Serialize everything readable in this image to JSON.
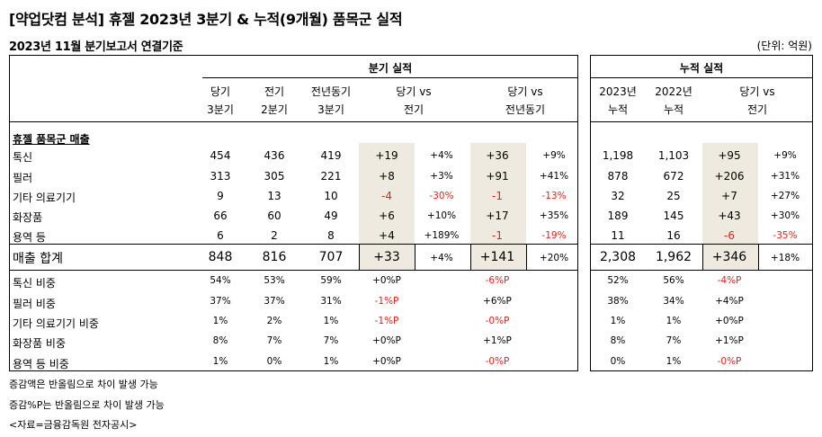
{
  "title": "[약업닷컴 분석] 휴젤 2023년 3분기 & 누적(9개월) 품목군 실적",
  "subtitle": "2023년 11월 분기보고서 연결기준",
  "unit": "(단위: 억원)",
  "groups": {
    "quarter": "분기 실적",
    "cumulative": "누적 실적"
  },
  "headers": {
    "q_cur": [
      "당기",
      "3분기"
    ],
    "q_prev": [
      "전기",
      "2분기"
    ],
    "q_yoy": [
      "전년동기",
      "3분기"
    ],
    "q_vs_prev": [
      "당기 vs",
      "전기"
    ],
    "q_vs_yoy": [
      "당기 vs",
      "전년동기"
    ],
    "c_2023": [
      "2023년",
      "누적"
    ],
    "c_2022": [
      "2022년",
      "누적"
    ],
    "c_vs": [
      "당기 vs",
      "전기"
    ]
  },
  "section_label": "휴젤 품목군 매출",
  "rows": [
    {
      "label": "톡신",
      "cur": "454",
      "prev": "436",
      "yoy": "419",
      "d1": "+19",
      "p1": "+4%",
      "d2": "+36",
      "p2": "+9%",
      "c23": "1,198",
      "c22": "1,103",
      "d3": "+95",
      "p3": "+9%"
    },
    {
      "label": "필러",
      "cur": "313",
      "prev": "305",
      "yoy": "221",
      "d1": "+8",
      "p1": "+3%",
      "d2": "+91",
      "p2": "+41%",
      "c23": "878",
      "c22": "672",
      "d3": "+206",
      "p3": "+31%"
    },
    {
      "label": "기타 의료기기",
      "cur": "9",
      "prev": "13",
      "yoy": "10",
      "d1": "-4",
      "p1": "-30%",
      "d2": "-1",
      "p2": "-13%",
      "c23": "32",
      "c22": "25",
      "d3": "+7",
      "p3": "+27%"
    },
    {
      "label": "화장품",
      "cur": "66",
      "prev": "60",
      "yoy": "49",
      "d1": "+6",
      "p1": "+10%",
      "d2": "+17",
      "p2": "+35%",
      "c23": "189",
      "c22": "145",
      "d3": "+43",
      "p3": "+30%"
    },
    {
      "label": "용역 등",
      "cur": "6",
      "prev": "2",
      "yoy": "8",
      "d1": "+4",
      "p1": "+189%",
      "d2": "-1",
      "p2": "-19%",
      "c23": "11",
      "c22": "16",
      "d3": "-6",
      "p3": "-35%"
    }
  ],
  "total": {
    "label": "매출 합계",
    "cur": "848",
    "prev": "816",
    "yoy": "707",
    "d1": "+33",
    "p1": "+4%",
    "d2": "+141",
    "p2": "+20%",
    "c23": "2,308",
    "c22": "1,962",
    "d3": "+346",
    "p3": "+18%"
  },
  "ratios": [
    {
      "label": "톡신 비중",
      "cur": "54%",
      "prev": "53%",
      "yoy": "59%",
      "v1": "+0%P",
      "v2": "-6%P",
      "c23": "52%",
      "c22": "56%",
      "v3": "-4%P"
    },
    {
      "label": "필러 비중",
      "cur": "37%",
      "prev": "37%",
      "yoy": "31%",
      "v1": "-1%P",
      "v2": "+6%P",
      "c23": "38%",
      "c22": "34%",
      "v3": "+4%P"
    },
    {
      "label": "기타 의료기기 비중",
      "cur": "1%",
      "prev": "2%",
      "yoy": "1%",
      "v1": "-1%P",
      "v2": "-0%P",
      "c23": "1%",
      "c22": "1%",
      "v3": "+0%P"
    },
    {
      "label": "화장품 비중",
      "cur": "8%",
      "prev": "7%",
      "yoy": "7%",
      "v1": "+0%P",
      "v2": "+1%P",
      "c23": "8%",
      "c22": "7%",
      "v3": "+1%P"
    },
    {
      "label": "용역 등 비중",
      "cur": "1%",
      "prev": "0%",
      "yoy": "1%",
      "v1": "+0%P",
      "v2": "-0%P",
      "c23": "0%",
      "c22": "1%",
      "v3": "-0%P"
    }
  ],
  "notes": [
    "증감액은 반올림으로 차이 발생 가능",
    "증감%P는 반올림으로 차이 발생 가능",
    "<자료=금융감독원 전자공시>"
  ],
  "colors": {
    "negative": "#e0231f",
    "highlight": "#eeeae0",
    "text": "#000000"
  }
}
